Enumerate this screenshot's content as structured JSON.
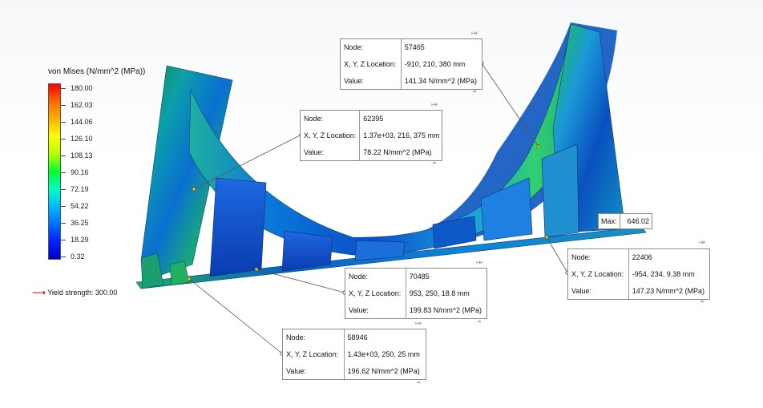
{
  "legend": {
    "title": "von Mises (N/mm^2 (MPa))",
    "values": [
      "180.00",
      "162.03",
      "144.06",
      "126.10",
      "108.13",
      "90.16",
      "72.19",
      "54.22",
      "36.25",
      "18.29",
      "0.32"
    ],
    "yield_text": "Yield strength: 300.00",
    "colors": {
      "high": "#ff0000",
      "low": "#0000c8",
      "yield_arrow": "#d40000"
    }
  },
  "max_marker": {
    "label": "Max:",
    "value": "646.02"
  },
  "probes": [
    {
      "node_label": "Node:",
      "node": "57465",
      "loc_label": "X, Y, Z Location:",
      "loc": "-910, 210, 380 mm",
      "value_label": "Value:",
      "value": "141.34 N/mm^2 (MPa)"
    },
    {
      "node_label": "Node:",
      "node": "62395",
      "loc_label": "X, Y, Z Location:",
      "loc": "1.37e+03, 216, 375 mm",
      "value_label": "Value:",
      "value": "78.22 N/mm^2 (MPa)"
    },
    {
      "node_label": "Node:",
      "node": "22406",
      "loc_label": "X, Y, Z Location:",
      "loc": "-954, 234, 9.38 mm",
      "value_label": "Value:",
      "value": "147.23 N/mm^2 (MPa)"
    },
    {
      "node_label": "Node:",
      "node": "70485",
      "loc_label": "X, Y, Z Location:",
      "loc": "953, 250, 18.8 mm",
      "value_label": "Value:",
      "value": "199.83 N/mm^2 (MPa)"
    },
    {
      "node_label": "Node:",
      "node": "58946",
      "loc_label": "X, Y, Z Location:",
      "loc": "1.43e+03, 250, 25 mm",
      "value_label": "Value:",
      "value": "196.62 N/mm^2 (MPa)"
    }
  ],
  "icons": {
    "pin": "pin-icon",
    "collapse": "caret-up-icon"
  }
}
